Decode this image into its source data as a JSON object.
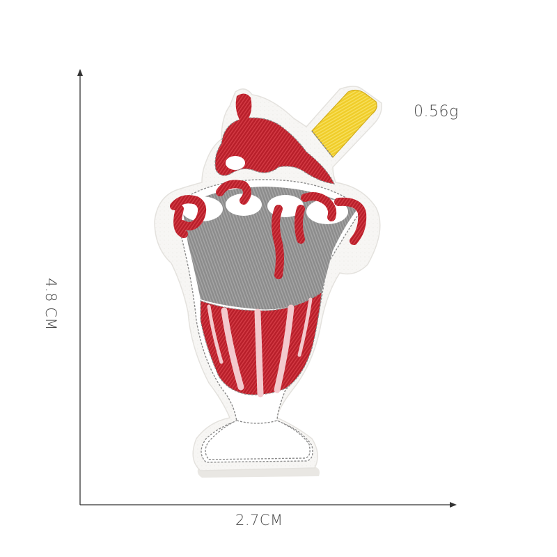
{
  "product": {
    "subject": "ice-cream-sundae-embroidered-patch",
    "weight": "0.56g",
    "width_dimension": "2.7CM",
    "height_dimension": "4.8 CM"
  },
  "colors": {
    "background": "#ffffff",
    "felt": "#f7f6f4",
    "cherry_red": "#b0202a",
    "syrup_red": "#c1222c",
    "grey_thread": "#8f8f8f",
    "pink_stripe": "#f2c7cb",
    "straw_yellow": "#f2d230",
    "dimension_line": "#333333",
    "text": "#4a4a4a"
  }
}
